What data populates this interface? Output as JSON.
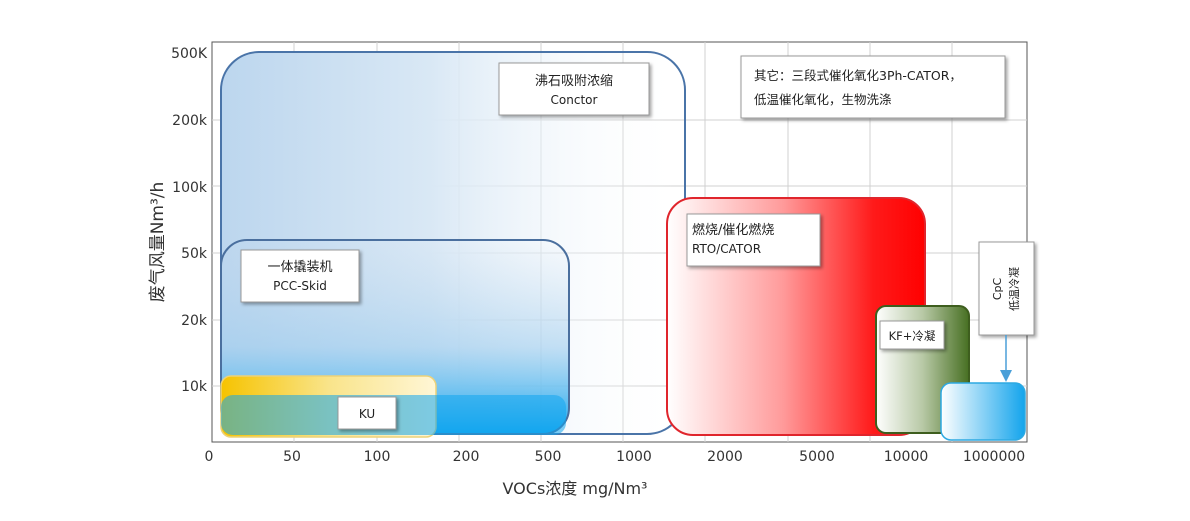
{
  "chart_data": {
    "type": "region",
    "xlabel": "VOCs浓度 mg/Nm³",
    "ylabel": "废气风量Nm³/h",
    "x_ticks": [
      "0",
      "50",
      "100",
      "200",
      "500",
      "1000",
      "2000",
      "5000",
      "10000",
      "1000000"
    ],
    "y_ticks": [
      "500K",
      "200k",
      "100k",
      "50k",
      "20k",
      "10k"
    ],
    "grid": true,
    "regions": [
      {
        "name": "沸石吸附浓缩",
        "name_en": "Conctor",
        "x_range": [
          "0",
          "1000"
        ],
        "y_range": [
          "0",
          "500K"
        ],
        "color": "#3f6fa8",
        "fill": "#9cc3e4"
      },
      {
        "name": "一体撬装机",
        "name_en": "PCC-Skid",
        "x_range": [
          "0",
          "500"
        ],
        "y_range": [
          "0",
          "50k"
        ],
        "color": "#4a73a8",
        "fill": "#1aa3e8"
      },
      {
        "name": "KU",
        "x_range": [
          "0",
          "200"
        ],
        "y_range": [
          "0",
          "10k"
        ],
        "color": "#e8c96a",
        "fill": "#f5c200"
      },
      {
        "name": "燃烧/催化燃烧",
        "name_en": "RTO/CATOR",
        "x_range": [
          "1000",
          "10000"
        ],
        "y_range": [
          "0",
          "100k"
        ],
        "color": "#e0252c",
        "fill": "#ff1010"
      },
      {
        "name": "KF+冷凝",
        "x_range": [
          "5000",
          "10000"
        ],
        "y_range": [
          "0",
          "20k"
        ],
        "color": "#4e6e2c",
        "fill": "#4f7a2a"
      },
      {
        "name": "CpC 低温冷凝",
        "x_range": [
          "10000",
          "1000000"
        ],
        "y_range": [
          "0",
          "10k"
        ],
        "color": "#33aee6",
        "fill": "#1da9ec"
      }
    ],
    "annotations": {
      "other_line1": "其它：三段式催化氧化3Ph-CATOR，",
      "other_line2": "低温催化氧化，生物洗涤",
      "cpc_line1": "CpC",
      "cpc_line2": "低温冷凝"
    }
  }
}
